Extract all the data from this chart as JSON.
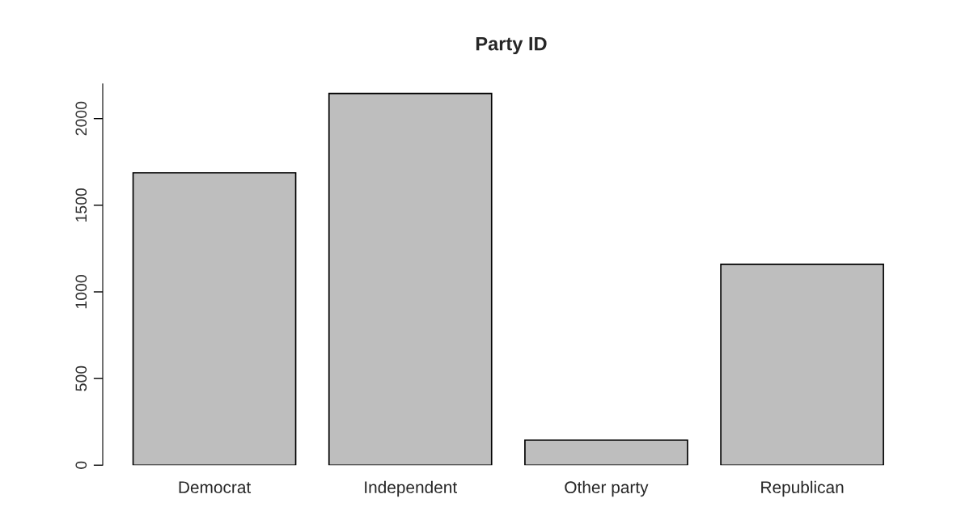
{
  "chart_data": {
    "type": "bar",
    "title": "Party ID",
    "categories": [
      "Democrat",
      "Independent",
      "Other party",
      "Republican"
    ],
    "values": [
      1687,
      2145,
      145,
      1159
    ],
    "color": "#bebebe",
    "ylim": [
      0,
      2200
    ],
    "yticks": [
      0,
      500,
      1000,
      1500,
      2000
    ],
    "grid": false
  }
}
